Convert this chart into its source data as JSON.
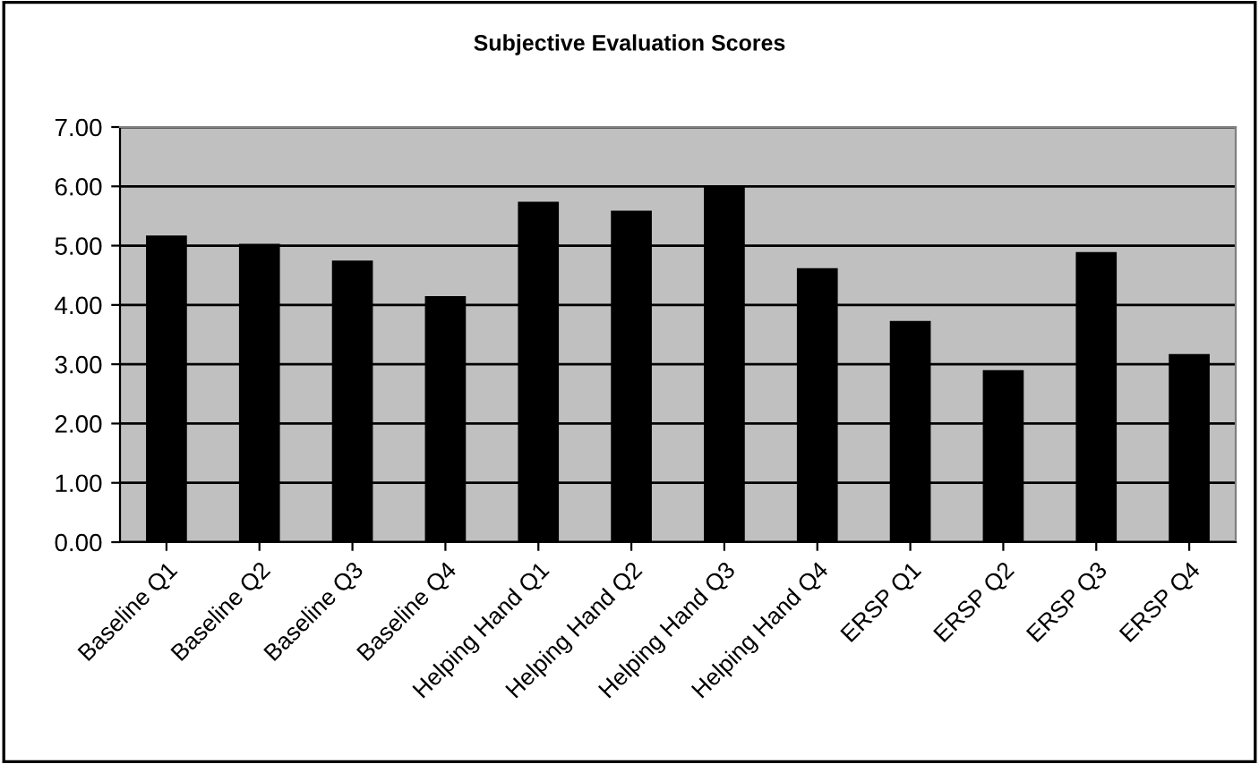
{
  "chart_data": {
    "type": "bar",
    "title": "Subjective Evaluation Scores",
    "categories": [
      "Baseline Q1",
      "Baseline Q2",
      "Baseline Q3",
      "Baseline Q4",
      "Helping Hand Q1",
      "Helping Hand Q2",
      "Helping Hand Q3",
      "Helping Hand Q4",
      "ERSP Q1",
      "ERSP Q2",
      "ERSP Q3",
      "ERSP Q4"
    ],
    "values": [
      5.17,
      5.03,
      4.75,
      4.15,
      5.74,
      5.59,
      6.0,
      4.62,
      3.73,
      2.9,
      4.89,
      3.17
    ],
    "color": "#000000",
    "ylim": [
      0,
      7
    ],
    "yticks": [
      {
        "value": 0,
        "label": "0.00"
      },
      {
        "value": 1,
        "label": "1.00"
      },
      {
        "value": 2,
        "label": "2.00"
      },
      {
        "value": 3,
        "label": "3.00"
      },
      {
        "value": 4,
        "label": "4.00"
      },
      {
        "value": 5,
        "label": "5.00"
      },
      {
        "value": 6,
        "label": "6.00"
      },
      {
        "value": 7,
        "label": "7.00"
      }
    ],
    "grid": "y"
  }
}
